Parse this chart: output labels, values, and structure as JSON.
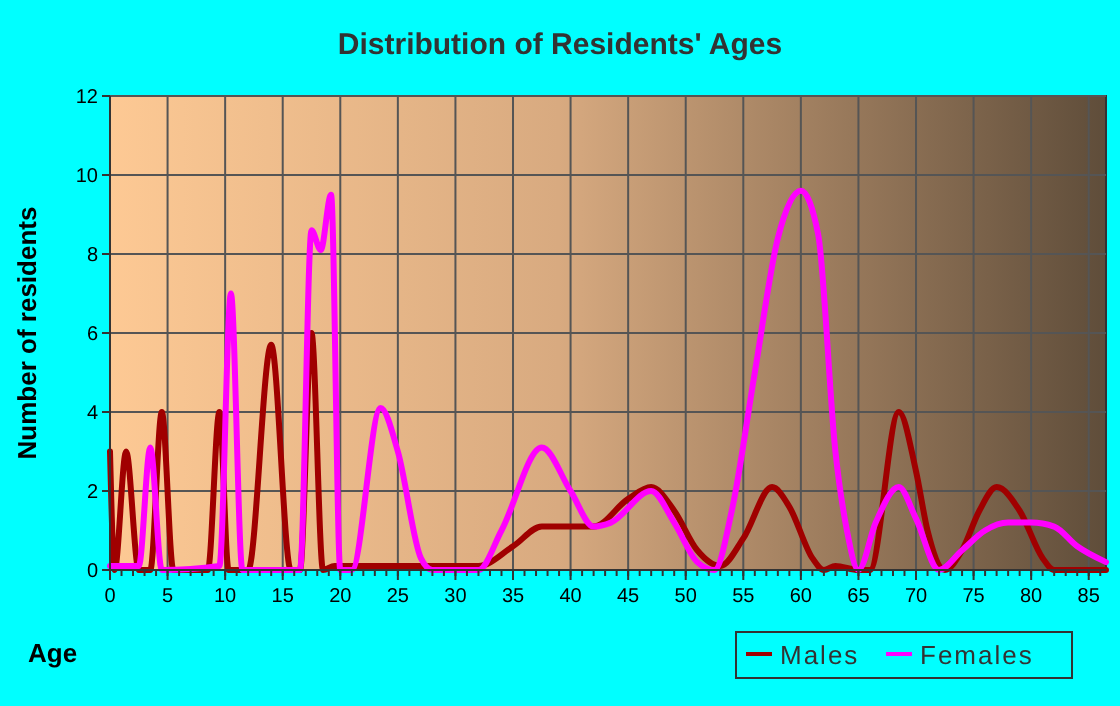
{
  "chart_data": {
    "type": "line",
    "title": "Distribution of Residents' Ages",
    "xlabel": "Age",
    "ylabel": "Number of residents",
    "xlim": [
      0,
      86.5
    ],
    "ylim": [
      0,
      12
    ],
    "xticks": [
      0,
      5,
      10,
      15,
      20,
      25,
      30,
      35,
      40,
      45,
      50,
      55,
      60,
      65,
      70,
      75,
      80,
      85
    ],
    "yticks": [
      0,
      2,
      4,
      6,
      8,
      10,
      12
    ],
    "grid": true,
    "legend": "bottom",
    "line_style": "solid",
    "series": [
      {
        "name": "Males",
        "color": "#a00000",
        "x": [
          0,
          0.4,
          1.4,
          2.5,
          3.5,
          4.5,
          5.5,
          8.5,
          9.5,
          10.3,
          12,
          14,
          15.7,
          16.5,
          17.5,
          18.5,
          19.5,
          30,
          32,
          35,
          37.5,
          40,
          42,
          45,
          47,
          49,
          51,
          53,
          55,
          57.5,
          59,
          61,
          62,
          63,
          65,
          66,
          68.5,
          70,
          71,
          72.5,
          74,
          75.5,
          77,
          79,
          81,
          82,
          86.5
        ],
        "values": [
          3,
          0,
          3,
          0,
          0,
          4,
          0,
          0,
          4,
          0,
          0,
          5.7,
          0,
          0,
          6,
          0,
          0.1,
          0.1,
          0.1,
          0.6,
          1.1,
          1.1,
          1.1,
          1.8,
          2.1,
          1.5,
          0.5,
          0.1,
          0.8,
          2.1,
          1.6,
          0.3,
          0,
          0.1,
          0,
          0,
          4,
          2.5,
          1,
          0,
          0.5,
          1.5,
          2.1,
          1.5,
          0.3,
          0,
          0
        ]
      },
      {
        "name": "Females",
        "color": "#ff00ff",
        "x": [
          0,
          2.5,
          3.5,
          4.5,
          9.5,
          10.5,
          11.5,
          16.5,
          17.5,
          18.3,
          19.2,
          20,
          21,
          23.5,
          25,
          27,
          28,
          32,
          34,
          37.5,
          40,
          42,
          43.5,
          47,
          49,
          51,
          52.5,
          54,
          56,
          58,
          60,
          61.5,
          63,
          64,
          65,
          66.5,
          68.5,
          70,
          72,
          74,
          76,
          78,
          80,
          82,
          84,
          86.5
        ],
        "values": [
          0.1,
          0.1,
          3.1,
          0,
          0.1,
          7,
          0,
          0,
          8.6,
          8.1,
          9.5,
          0,
          0,
          4.1,
          3,
          0.3,
          0,
          0,
          1,
          3.1,
          2,
          1.1,
          1.2,
          2,
          1.2,
          0.2,
          0,
          1.5,
          5,
          8.4,
          9.6,
          8.5,
          3,
          1,
          0,
          1.2,
          2.1,
          1.3,
          0,
          0.5,
          1,
          1.2,
          1.2,
          1.1,
          0.6,
          0.2
        ]
      }
    ]
  }
}
